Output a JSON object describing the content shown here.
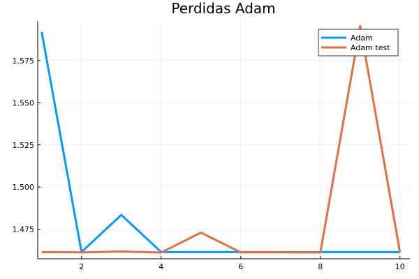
{
  "chart_data": {
    "type": "line",
    "title": "Perdidas Adam",
    "xlabel": "",
    "ylabel": "",
    "xlim": [
      0.9,
      10.25
    ],
    "ylim": [
      1.4575,
      1.5985
    ],
    "x_ticks": [
      2,
      4,
      6,
      8,
      10
    ],
    "x_tick_labels": [
      "2",
      "4",
      "6",
      "8",
      "10"
    ],
    "y_ticks": [
      1.475,
      1.5,
      1.525,
      1.55,
      1.575
    ],
    "y_tick_labels": [
      "1.475",
      "1.500",
      "1.525",
      "1.550",
      "1.575"
    ],
    "grid": true,
    "legend_position": "top-right",
    "x": [
      1,
      2,
      3,
      4,
      5,
      6,
      7,
      8,
      9,
      10
    ],
    "series": [
      {
        "name": "Adam",
        "color": "#009AFA",
        "values": [
          1.592,
          1.4615,
          1.4835,
          1.4615,
          1.4615,
          1.4615,
          1.4615,
          1.4615,
          1.4615,
          1.4615
        ]
      },
      {
        "name": "Adam test",
        "color": "#E26F46",
        "values": [
          1.4615,
          1.4613,
          1.4618,
          1.4612,
          1.473,
          1.4613,
          1.4613,
          1.4612,
          1.5955,
          1.4613
        ]
      }
    ]
  }
}
